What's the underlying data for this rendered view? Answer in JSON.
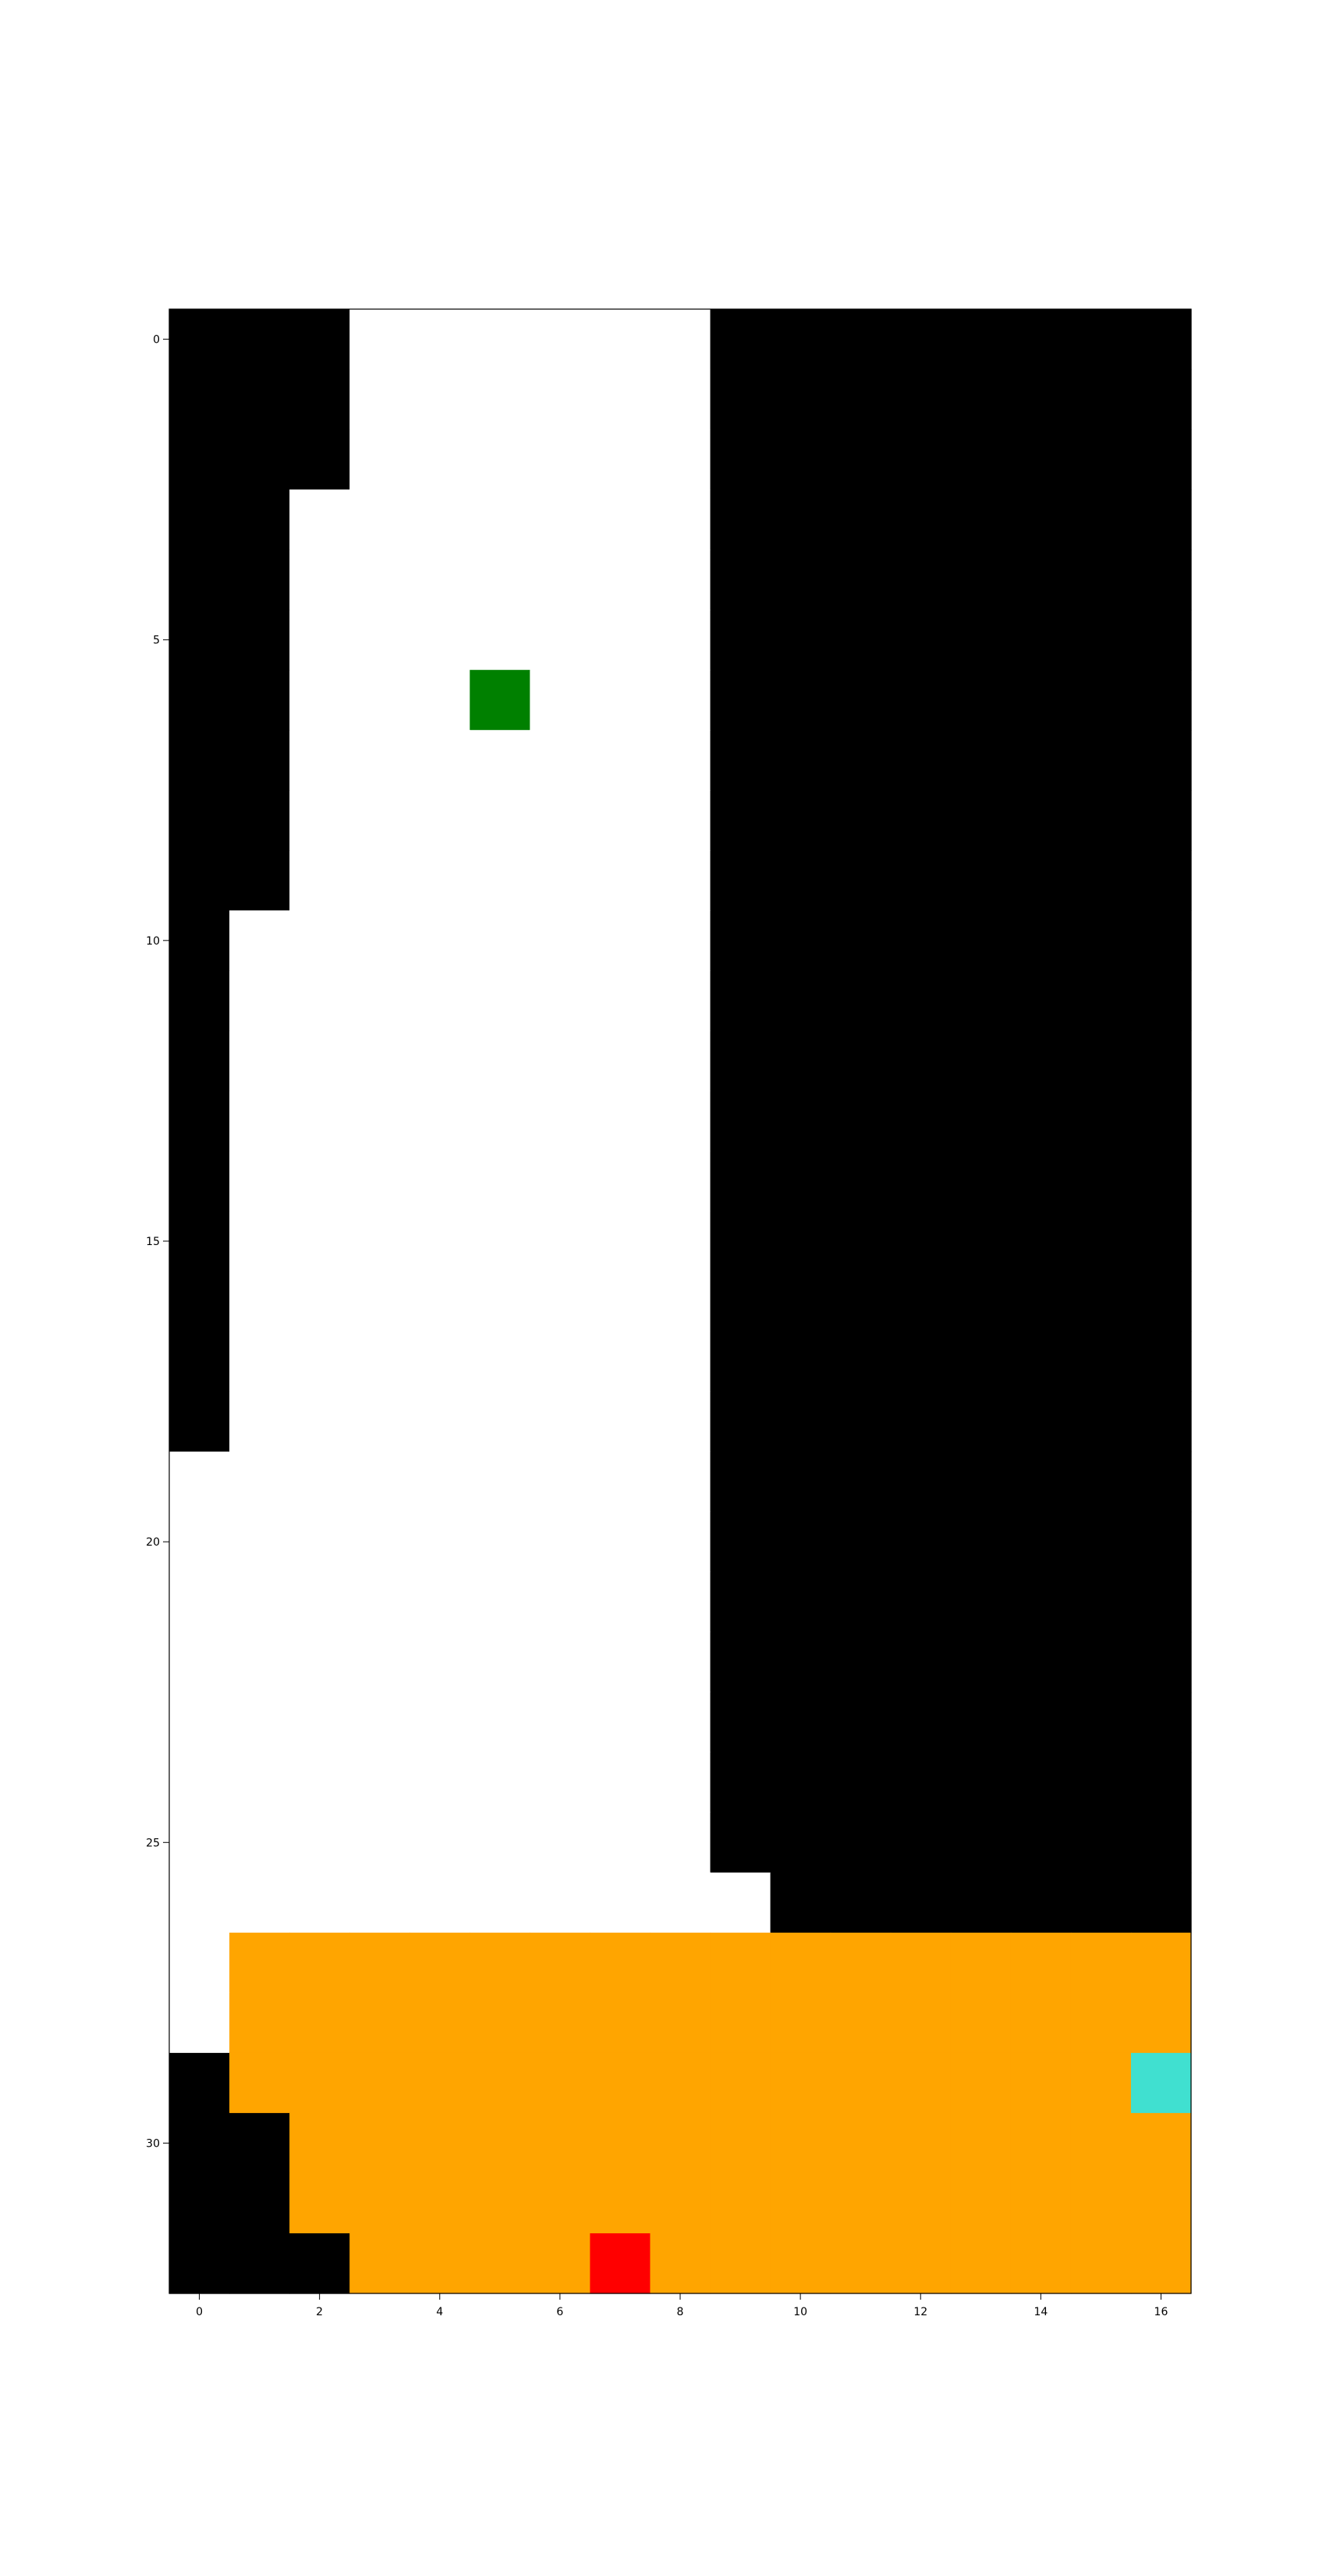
{
  "chart_data": {
    "type": "heatmap",
    "title": "",
    "xlabel": "",
    "ylabel": "",
    "n_cols": 17,
    "n_rows": 33,
    "xlim": [
      -0.5,
      16.5
    ],
    "ylim": [
      32.5,
      -0.5
    ],
    "x_ticks": [
      0,
      2,
      4,
      6,
      8,
      10,
      12,
      14,
      16
    ],
    "y_ticks": [
      0,
      5,
      10,
      15,
      20,
      25,
      30
    ],
    "grid": false,
    "palette": {
      "0": "#000000",
      "1": "#ffffff",
      "2": "#ffa500",
      "3": "#008000",
      "4": "#ff0000",
      "5": "#40e0d0"
    },
    "grid_rows": [
      "00011111100000000",
      "00011111100000000",
      "00011111100000000",
      "00111111100000000",
      "00111111100000000",
      "00111111100000000",
      "00111311100000000",
      "00111111100000000",
      "00111111100000000",
      "00111111100000000",
      "01111111100000000",
      "01111111100000000",
      "01111111100000000",
      "01111111100000000",
      "01111111100000000",
      "01111111100000000",
      "01111111100000000",
      "01111111100000000",
      "01111111100000000",
      "11111111100000000",
      "11111111100000000",
      "11111111100000000",
      "11111111100000000",
      "11111111100000000",
      "11111111100000000",
      "11111111100000000",
      "11111111110000000",
      "12222222222222222",
      "12222222222222222",
      "02222222222222225",
      "00222222222222222",
      "00222222222222222",
      "00022224222222222"
    ]
  }
}
